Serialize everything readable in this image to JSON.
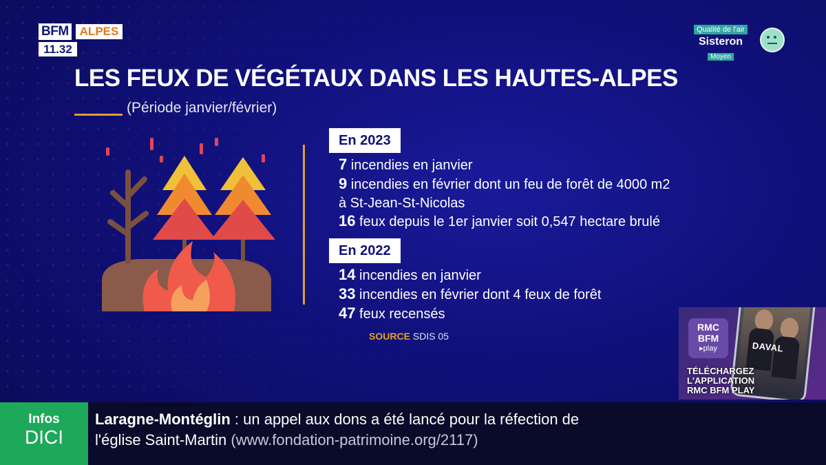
{
  "channel": {
    "brand": "BFM",
    "region": "ALPES",
    "time": "11.32"
  },
  "air_quality": {
    "label": "Qualité de l'air",
    "city": "Sisteron",
    "level": "Moyen",
    "icon": "neutral-face-icon"
  },
  "infographic": {
    "title": "LES FEUX DE VÉGÉTAUX DANS LES HAUTES-ALPES",
    "subtitle": "(Période janvier/février)",
    "icon": "forest-fire-icon",
    "years": [
      {
        "label": "En 2023",
        "lines": [
          {
            "num": "7",
            "text": " incendies en janvier"
          },
          {
            "num": "9",
            "text": " incendies en février dont un feu de forêt de 4000 m2"
          },
          {
            "num": "",
            "text": "à St-Jean-St-Nicolas"
          },
          {
            "num": "16",
            "text": " feux depuis le 1er janvier soit 0,547 hectare brulé"
          }
        ]
      },
      {
        "label": "En 2022",
        "lines": [
          {
            "num": "14",
            "text": " incendies en janvier"
          },
          {
            "num": "33",
            "text": " incendies en février dont 4 feux de forêt"
          },
          {
            "num": "47",
            "text": " feux recensés"
          }
        ]
      }
    ],
    "source_label": "SOURCE",
    "source_value": "SDIS 05"
  },
  "promo": {
    "logo_line1": "RMC",
    "logo_line2": "BFM",
    "logo_line3": "▸play",
    "phone_text": "DAVAL",
    "text_line1": "TÉLÉCHARGEZ",
    "text_line2": "L'APPLICATION",
    "text_line3": "RMC BFM PLAY"
  },
  "ticker": {
    "brand_line1": "Infos",
    "brand_line2": "DICI",
    "place": "Laragne-Montéglin",
    "separator": " : ",
    "message": "un appel aux dons a été lancé pour la réfection de",
    "message2": "l'église Saint-Martin",
    "url": "(www.fondation-patrimoine.org/2117)"
  }
}
